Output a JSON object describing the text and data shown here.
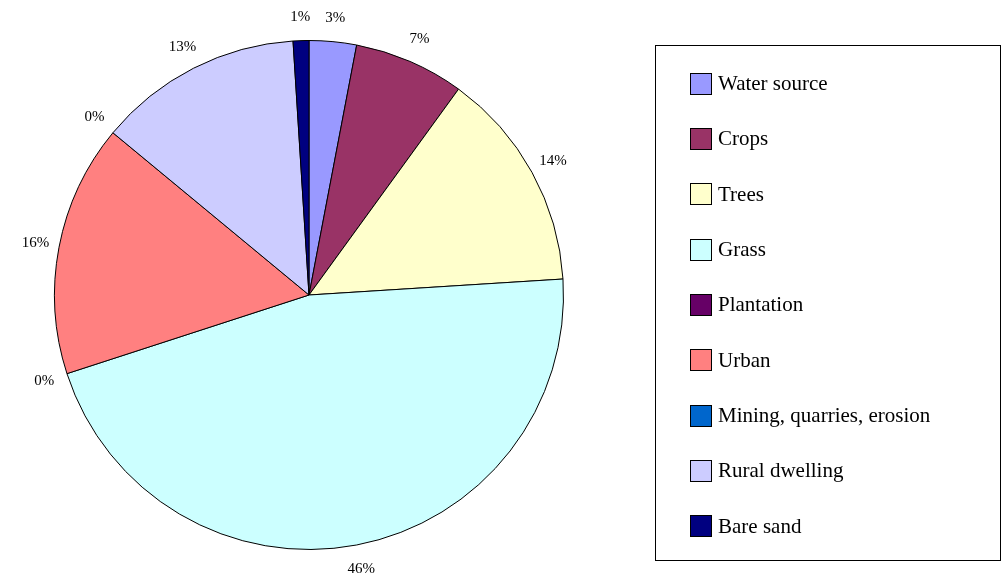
{
  "chart_data": {
    "type": "pie",
    "categories": [
      "Water source",
      "Crops",
      "Trees",
      "Grass",
      "Plantation",
      "Urban",
      "Mining, quarries, erosion",
      "Rural dwelling",
      "Bare sand"
    ],
    "values": [
      3,
      7,
      14,
      46,
      0,
      16,
      0,
      13,
      1
    ],
    "colors": [
      "#9999ff",
      "#993366",
      "#ffffcc",
      "#ccffff",
      "#660066",
      "#ff8080",
      "#0066cc",
      "#ccccff",
      "#000080"
    ],
    "value_labels": [
      "3%",
      "7%",
      "14%",
      "46%",
      "0%",
      "16%",
      "0%",
      "13%",
      "1%"
    ],
    "legend": "right"
  }
}
